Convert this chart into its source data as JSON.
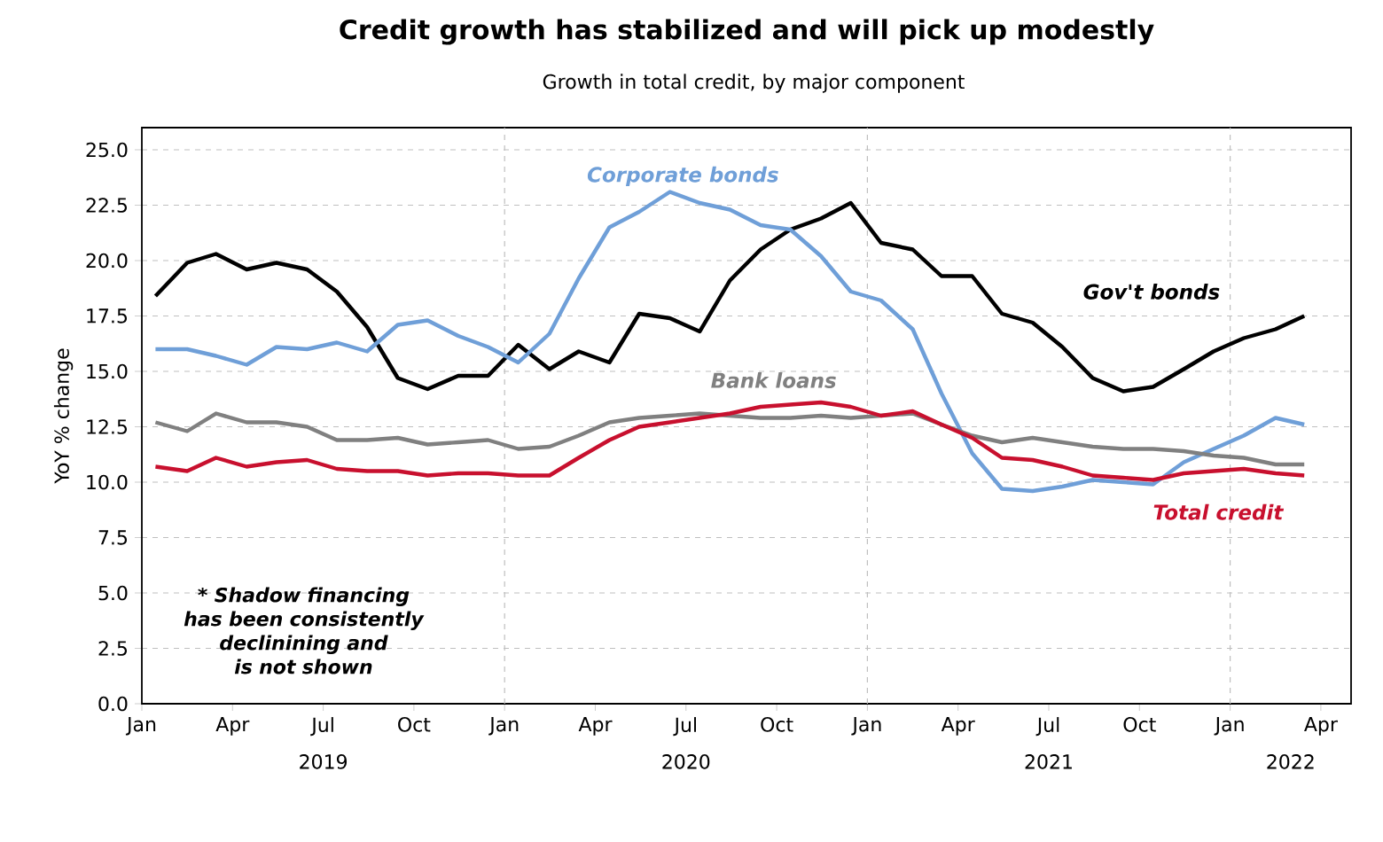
{
  "chart_data": {
    "type": "line",
    "title": "Credit growth has stabilized and will pick up modestly",
    "subtitle": "Growth in total credit, by major component",
    "ylabel": "YoY % change",
    "x": [
      "2019-01-15",
      "2019-02-15",
      "2019-03-15",
      "2019-04-15",
      "2019-05-15",
      "2019-06-15",
      "2019-07-15",
      "2019-08-15",
      "2019-09-15",
      "2019-10-15",
      "2019-11-15",
      "2019-12-15",
      "2020-01-15",
      "2020-02-15",
      "2020-03-15",
      "2020-04-15",
      "2020-05-15",
      "2020-06-15",
      "2020-07-15",
      "2020-08-15",
      "2020-09-15",
      "2020-10-15",
      "2020-11-15",
      "2020-12-15",
      "2021-01-15",
      "2021-02-15",
      "2021-03-15",
      "2021-04-15",
      "2021-05-15",
      "2021-06-15",
      "2021-07-15",
      "2021-08-15",
      "2021-09-15",
      "2021-10-15",
      "2021-11-15",
      "2021-12-15",
      "2022-01-15",
      "2022-02-15",
      "2022-03-15"
    ],
    "series": [
      {
        "name": "Gov't bonds",
        "color": "#000000",
        "values": [
          18.4,
          19.9,
          20.3,
          19.6,
          19.9,
          19.6,
          18.6,
          17.0,
          14.7,
          14.2,
          14.8,
          14.8,
          16.2,
          15.1,
          15.9,
          15.4,
          17.6,
          17.4,
          16.8,
          19.1,
          20.5,
          21.4,
          21.9,
          22.6,
          20.8,
          20.5,
          19.3,
          19.3,
          17.6,
          17.2,
          16.1,
          14.7,
          14.1,
          14.3,
          15.1,
          15.9,
          16.5,
          16.9,
          17.5
        ]
      },
      {
        "name": "Corporate bonds",
        "color": "#6f9fd8",
        "values": [
          16.0,
          16.0,
          15.7,
          15.3,
          16.1,
          16.0,
          16.3,
          15.9,
          17.1,
          17.3,
          16.6,
          16.1,
          15.4,
          16.7,
          19.2,
          21.5,
          22.2,
          23.1,
          22.6,
          22.3,
          21.6,
          21.4,
          20.2,
          18.6,
          18.2,
          16.9,
          14.0,
          11.3,
          9.7,
          9.6,
          9.8,
          10.1,
          10.0,
          9.9,
          10.9,
          11.5,
          12.1,
          12.9,
          12.6
        ]
      },
      {
        "name": "Bank loans",
        "color": "#808080",
        "values": [
          12.7,
          12.3,
          13.1,
          12.7,
          12.7,
          12.5,
          11.9,
          11.9,
          12.0,
          11.7,
          11.8,
          11.9,
          11.5,
          11.6,
          12.1,
          12.7,
          12.9,
          13.0,
          13.1,
          13.0,
          12.9,
          12.9,
          13.0,
          12.9,
          13.0,
          13.1,
          12.6,
          12.1,
          11.8,
          12.0,
          11.8,
          11.6,
          11.5,
          11.5,
          11.4,
          11.2,
          11.1,
          10.8,
          10.8
        ]
      },
      {
        "name": "Total credit",
        "color": "#c8102e",
        "values": [
          10.7,
          10.5,
          11.1,
          10.7,
          10.9,
          11.0,
          10.6,
          10.5,
          10.5,
          10.3,
          10.4,
          10.4,
          10.3,
          10.3,
          11.1,
          11.9,
          12.5,
          12.7,
          12.9,
          13.1,
          13.4,
          13.5,
          13.6,
          13.4,
          13.0,
          13.2,
          12.6,
          12.0,
          11.1,
          11.0,
          10.7,
          10.3,
          10.2,
          10.1,
          10.4,
          10.5,
          10.6,
          10.4,
          10.3
        ]
      }
    ],
    "xlim": [
      "2019-01",
      "2022-05"
    ],
    "xticks": [
      {
        "value": "2019-01",
        "label": "Jan"
      },
      {
        "value": "2019-04",
        "label": "Apr"
      },
      {
        "value": "2019-07",
        "label": "Jul"
      },
      {
        "value": "2019-10",
        "label": "Oct"
      },
      {
        "value": "2020-01",
        "label": "Jan"
      },
      {
        "value": "2020-04",
        "label": "Apr"
      },
      {
        "value": "2020-07",
        "label": "Jul"
      },
      {
        "value": "2020-10",
        "label": "Oct"
      },
      {
        "value": "2021-01",
        "label": "Jan"
      },
      {
        "value": "2021-04",
        "label": "Apr"
      },
      {
        "value": "2021-07",
        "label": "Jul"
      },
      {
        "value": "2021-10",
        "label": "Oct"
      },
      {
        "value": "2022-01",
        "label": "Jan"
      },
      {
        "value": "2022-04",
        "label": "Apr"
      }
    ],
    "ylim": [
      0,
      26
    ],
    "yticks": [
      {
        "value": 0,
        "label": "0.0"
      },
      {
        "value": 2.5,
        "label": "2.5"
      },
      {
        "value": 5,
        "label": "5.0"
      },
      {
        "value": 7.5,
        "label": "7.5"
      },
      {
        "value": 10,
        "label": "10.0"
      },
      {
        "value": 12.5,
        "label": "12.5"
      },
      {
        "value": 15,
        "label": "15.0"
      },
      {
        "value": 17.5,
        "label": "17.5"
      },
      {
        "value": 20,
        "label": "20.0"
      },
      {
        "value": 22.5,
        "label": "22.5"
      },
      {
        "value": 25,
        "label": "25.0"
      }
    ],
    "grid": true,
    "legend": false,
    "line_style": "solid",
    "marker": "none",
    "annotations": [
      "* Shadow financing has been consistently declinining and is not shown",
      "2019",
      "2020",
      "2021",
      "2022"
    ]
  }
}
